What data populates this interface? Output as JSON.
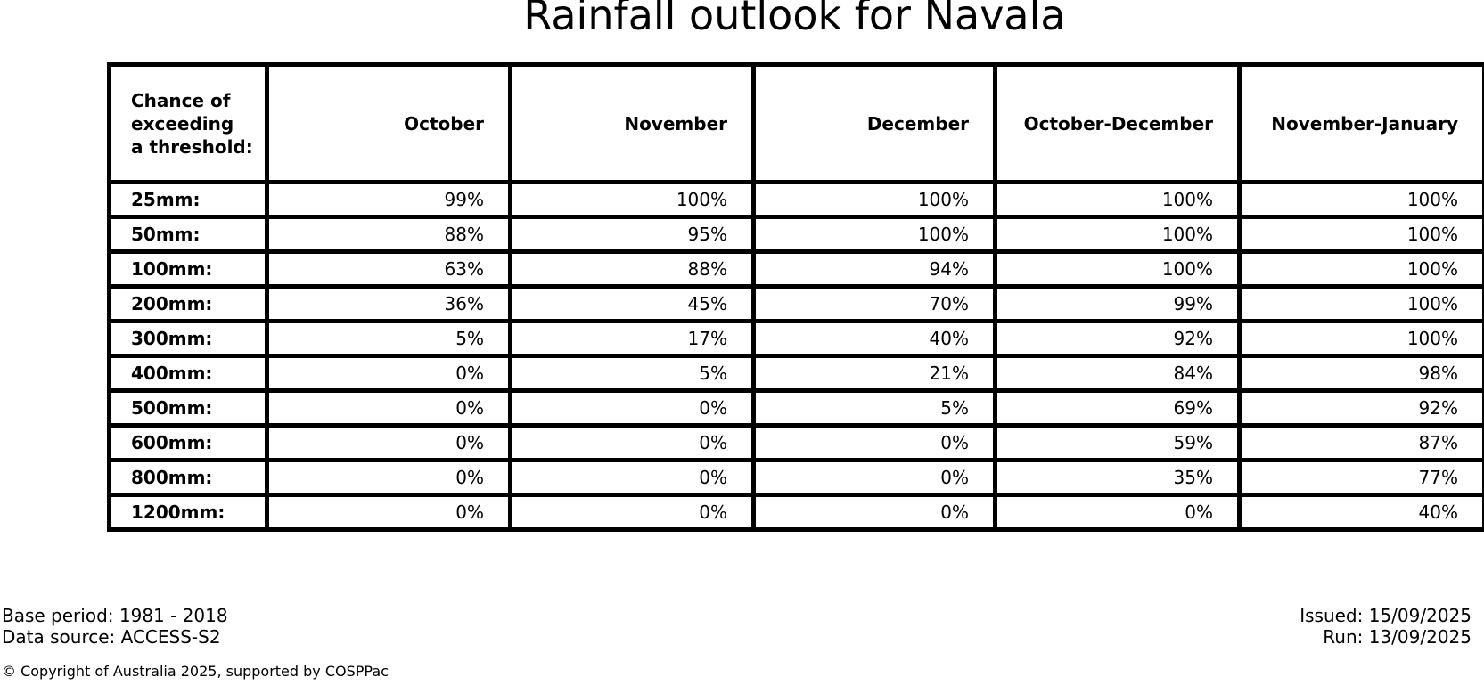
{
  "title": "Rainfall outlook for Navala",
  "table": {
    "corner_header": "Chance of\nexceeding\na threshold:",
    "columns": [
      "October",
      "November",
      "December",
      "October-December",
      "November-January"
    ],
    "rows": [
      {
        "label": "25mm:",
        "values": [
          "99%",
          "100%",
          "100%",
          "100%",
          "100%"
        ]
      },
      {
        "label": "50mm:",
        "values": [
          "88%",
          "95%",
          "100%",
          "100%",
          "100%"
        ]
      },
      {
        "label": "100mm:",
        "values": [
          "63%",
          "88%",
          "94%",
          "100%",
          "100%"
        ]
      },
      {
        "label": "200mm:",
        "values": [
          "36%",
          "45%",
          "70%",
          "99%",
          "100%"
        ]
      },
      {
        "label": "300mm:",
        "values": [
          "5%",
          "17%",
          "40%",
          "92%",
          "100%"
        ]
      },
      {
        "label": "400mm:",
        "values": [
          "0%",
          "5%",
          "21%",
          "84%",
          "98%"
        ]
      },
      {
        "label": "500mm:",
        "values": [
          "0%",
          "0%",
          "5%",
          "69%",
          "92%"
        ]
      },
      {
        "label": "600mm:",
        "values": [
          "0%",
          "0%",
          "0%",
          "59%",
          "87%"
        ]
      },
      {
        "label": "800mm:",
        "values": [
          "0%",
          "0%",
          "0%",
          "35%",
          "77%"
        ]
      },
      {
        "label": "1200mm:",
        "values": [
          "0%",
          "0%",
          "0%",
          "0%",
          "40%"
        ]
      }
    ]
  },
  "footer": {
    "base_period": "Base period: 1981 - 2018",
    "data_source": "Data source: ACCESS-S2",
    "issued": "Issued: 15/09/2025",
    "run": "Run: 13/09/2025",
    "copyright": "© Copyright of Australia 2025, supported by COSPPac"
  },
  "colors": {
    "text": "#000000",
    "border": "#000000",
    "background": "#ffffff"
  },
  "chart_data": {
    "type": "table",
    "title": "Rainfall outlook for Navala",
    "row_header": "Chance of exceeding a threshold:",
    "unit": "%",
    "categories": [
      "25mm",
      "50mm",
      "100mm",
      "200mm",
      "300mm",
      "400mm",
      "500mm",
      "600mm",
      "800mm",
      "1200mm"
    ],
    "series": [
      {
        "name": "October",
        "values": [
          99,
          88,
          63,
          36,
          5,
          0,
          0,
          0,
          0,
          0
        ]
      },
      {
        "name": "November",
        "values": [
          100,
          95,
          88,
          45,
          17,
          5,
          0,
          0,
          0,
          0
        ]
      },
      {
        "name": "December",
        "values": [
          100,
          100,
          94,
          70,
          40,
          21,
          5,
          0,
          0,
          0
        ]
      },
      {
        "name": "October-December",
        "values": [
          100,
          100,
          100,
          99,
          92,
          84,
          69,
          59,
          35,
          0
        ]
      },
      {
        "name": "November-January",
        "values": [
          100,
          100,
          100,
          100,
          100,
          98,
          92,
          87,
          77,
          40
        ]
      }
    ],
    "annotations": {
      "base_period": "1981 - 2018",
      "data_source": "ACCESS-S2",
      "issued": "15/09/2025",
      "run": "13/09/2025"
    }
  }
}
